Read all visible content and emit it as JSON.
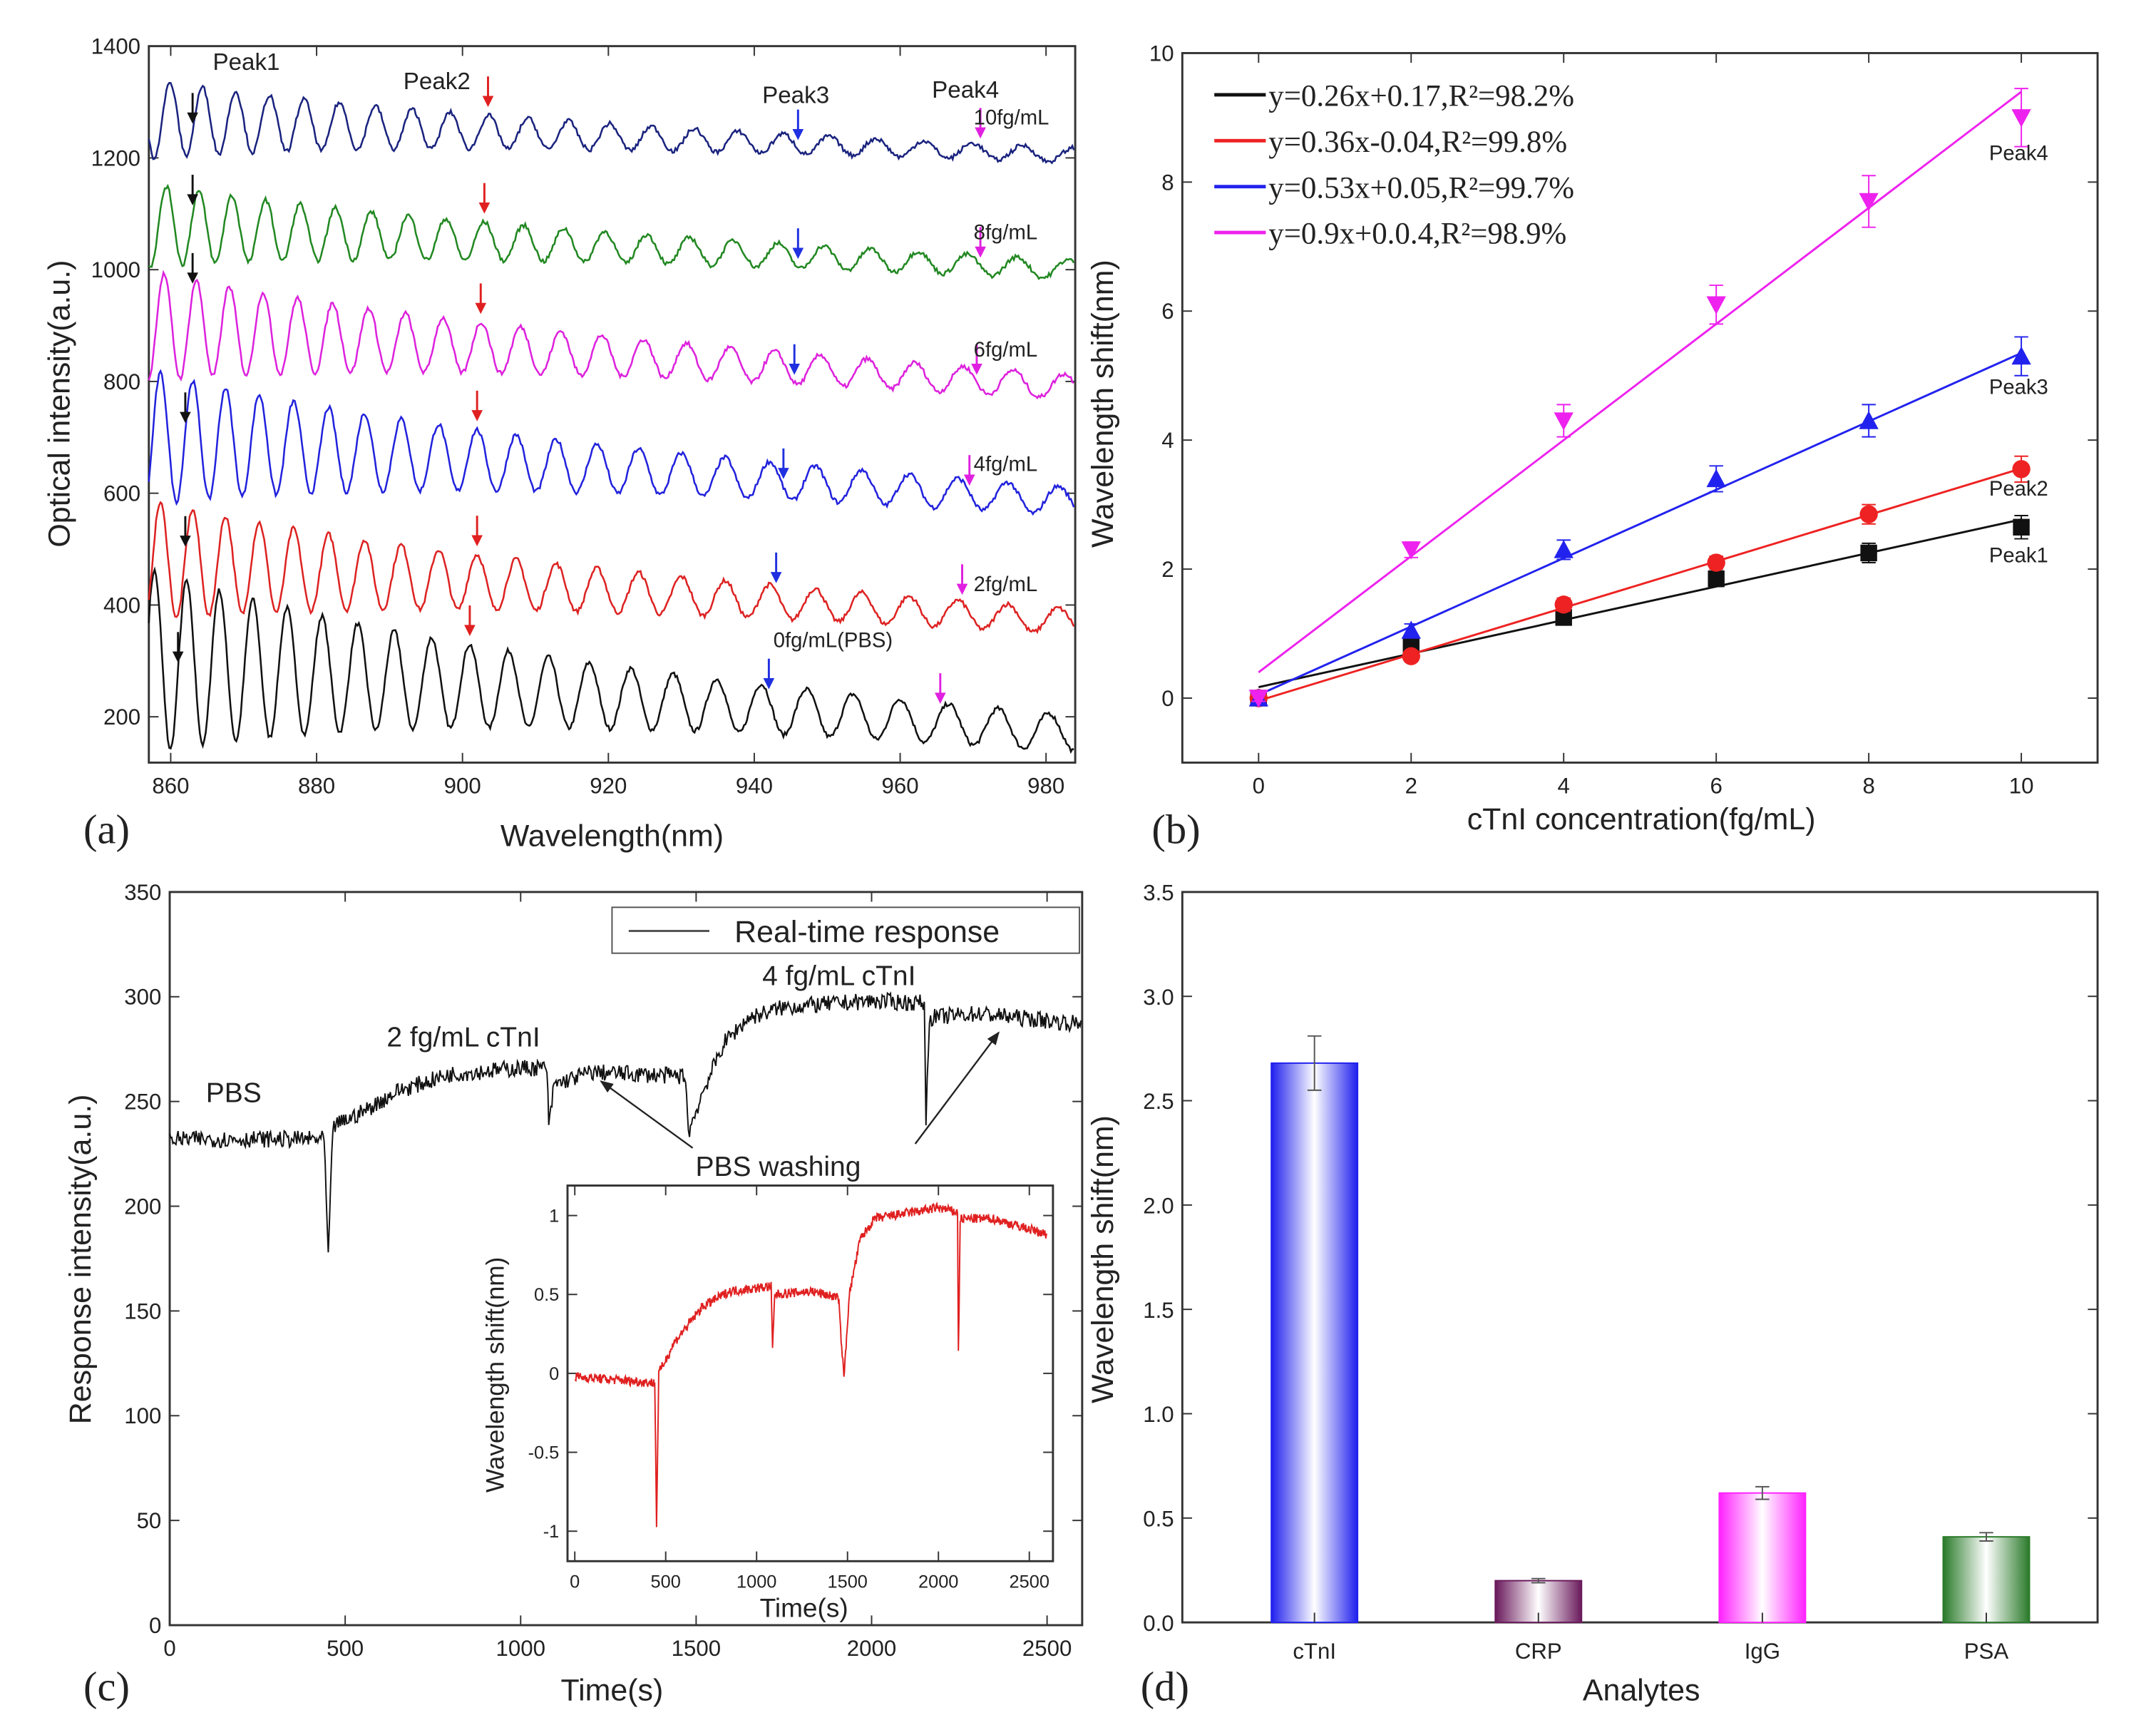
{
  "chart_data": [
    {
      "panel": "(a)",
      "type": "line",
      "xlabel": "Wavelength(nm)",
      "ylabel": "Optical intensity(a.u.)",
      "xlim": [
        857,
        984
      ],
      "ylim": [
        118,
        1400
      ],
      "xticks": [
        860,
        880,
        900,
        920,
        940,
        960,
        980
      ],
      "yticks": [
        200,
        400,
        600,
        800,
        1000,
        1200,
        1400
      ],
      "peak_labels": [
        "Peak1",
        "Peak2",
        "Peak3",
        "Peak4"
      ],
      "peak_colors": [
        "#111111",
        "#e02020",
        "#2030e0",
        "#e020e0"
      ],
      "series": [
        {
          "name": "0fg/mL(PBS)",
          "color": "#111111",
          "baseline_start": 300,
          "baseline_end": 170,
          "amp_start": 140,
          "amp_end": 25,
          "peaks_nm": [
            861,
            901,
            942,
            965.5
          ]
        },
        {
          "name": "2fg/mL",
          "color": "#dd2222",
          "baseline_start": 480,
          "baseline_end": 370,
          "amp_start": 90,
          "amp_end": 18,
          "peaks_nm": [
            862,
            902,
            943,
            968.5
          ]
        },
        {
          "name": "4fg/mL",
          "color": "#2222dd",
          "baseline_start": 700,
          "baseline_end": 585,
          "amp_start": 100,
          "amp_end": 20,
          "peaks_nm": [
            862,
            902,
            944,
            969.5
          ]
        },
        {
          "name": "6fg/mL",
          "color": "#dd22dd",
          "baseline_start": 900,
          "baseline_end": 790,
          "amp_start": 80,
          "amp_end": 18,
          "peaks_nm": [
            863,
            902.5,
            945.5,
            970.5
          ]
        },
        {
          "name": "8fg/mL",
          "color": "#228822",
          "baseline_start": 1080,
          "baseline_end": 1000,
          "amp_start": 60,
          "amp_end": 14,
          "peaks_nm": [
            863,
            903,
            946,
            971
          ]
        },
        {
          "name": "10fg/mL",
          "color": "#1a237e",
          "baseline_start": 1270,
          "baseline_end": 1205,
          "amp_start": 60,
          "amp_end": 10,
          "peaks_nm": [
            863,
            903.5,
            946,
            971
          ]
        }
      ]
    },
    {
      "panel": "(b)",
      "type": "scatter",
      "xlabel": "cTnI concentration(fg/mL)",
      "ylabel": "Wavelength shift(nm)",
      "xlim": [
        -1,
        11
      ],
      "ylim": [
        -1,
        10
      ],
      "xticks": [
        0,
        2,
        4,
        6,
        8,
        10
      ],
      "yticks": [
        0,
        2,
        4,
        6,
        8,
        10
      ],
      "x": [
        0,
        2,
        4,
        6,
        8,
        10
      ],
      "series": [
        {
          "name": "Peak1",
          "color": "#111111",
          "marker": "square",
          "values": [
            0,
            0.8,
            1.25,
            1.85,
            2.25,
            2.65
          ],
          "errors": [
            0.05,
            0.15,
            0.1,
            0.12,
            0.15,
            0.18
          ],
          "fit": {
            "slope": 0.26,
            "intercept": 0.17
          },
          "legend": "y=0.26x+0.17,R²=98.2%"
        },
        {
          "name": "Peak2",
          "color": "#ee2222",
          "marker": "circle",
          "values": [
            0,
            0.65,
            1.45,
            2.1,
            2.85,
            3.55
          ],
          "errors": [
            0.05,
            0.08,
            0.1,
            0.1,
            0.15,
            0.2
          ],
          "fit": {
            "slope": 0.36,
            "intercept": -0.04
          },
          "legend": "y=0.36x-0.04,R²=99.8%"
        },
        {
          "name": "Peak3",
          "color": "#2222ee",
          "marker": "triangle-up",
          "values": [
            0,
            1.05,
            2.3,
            3.4,
            4.3,
            5.3
          ],
          "errors": [
            0.05,
            0.1,
            0.15,
            0.2,
            0.25,
            0.3
          ],
          "fit": {
            "slope": 0.53,
            "intercept": 0.05
          },
          "legend": "y=0.53x+0.05,R²=99.7%"
        },
        {
          "name": "Peak4",
          "color": "#ee22ee",
          "marker": "triangle-down",
          "values": [
            0,
            2.3,
            4.3,
            6.1,
            7.7,
            9.0
          ],
          "errors": [
            0.05,
            0.12,
            0.25,
            0.3,
            0.4,
            0.45
          ],
          "fit": {
            "slope": 0.9,
            "intercept": 0.4
          },
          "legend": "y=0.9x+0.0.4,R²=98.9%"
        }
      ]
    },
    {
      "panel": "(c)",
      "type": "line",
      "xlabel": "Time(s)",
      "ylabel": "Response intensity(a.u.)",
      "xlim": [
        0,
        2600
      ],
      "ylim": [
        0,
        350
      ],
      "xticks": [
        0,
        500,
        1000,
        1500,
        2000,
        2500
      ],
      "yticks": [
        0,
        50,
        100,
        150,
        200,
        250,
        300,
        350
      ],
      "legend": "Real-time response",
      "annotations": [
        "PBS",
        "2 fg/mL cTnI",
        "4 fg/mL cTnI",
        "PBS washing"
      ],
      "series": [
        {
          "name": "Real-time response",
          "color": "#111111",
          "points": [
            [
              0,
              232
            ],
            [
              440,
              232
            ],
            [
              452,
              175
            ],
            [
              465,
              238
            ],
            [
              550,
              245
            ],
            [
              650,
              255
            ],
            [
              800,
              263
            ],
            [
              1000,
              266
            ],
            [
              1075,
              266
            ],
            [
              1080,
              237
            ],
            [
              1095,
              258
            ],
            [
              1200,
              264
            ],
            [
              1470,
              262
            ],
            [
              1478,
              235
            ],
            [
              1520,
              255
            ],
            [
              1580,
              278
            ],
            [
              1650,
              290
            ],
            [
              1750,
              295
            ],
            [
              2000,
              298
            ],
            [
              2150,
              297
            ],
            [
              2155,
              242
            ],
            [
              2165,
              290
            ],
            [
              2300,
              292
            ],
            [
              2600,
              287
            ]
          ]
        }
      ],
      "inset": {
        "type": "line",
        "xlabel": "Time(s)",
        "ylabel": "Wavelength shift(nm)",
        "xlim": [
          -40,
          2630
        ],
        "ylim": [
          -1.19,
          1.19
        ],
        "xticks": [
          0,
          500,
          1000,
          1500,
          2000,
          2500
        ],
        "yticks": [
          -1,
          -0.5,
          0,
          0.5,
          1
        ],
        "series": [
          {
            "name": "Wavelength shift",
            "color": "#e02020",
            "points": [
              [
                0,
                -0.02
              ],
              [
                440,
                -0.06
              ],
              [
                450,
                -0.97
              ],
              [
                462,
                0.0
              ],
              [
                550,
                0.2
              ],
              [
                700,
                0.42
              ],
              [
                850,
                0.52
              ],
              [
                1080,
                0.55
              ],
              [
                1088,
                0.15
              ],
              [
                1100,
                0.5
              ],
              [
                1300,
                0.52
              ],
              [
                1450,
                0.48
              ],
              [
                1480,
                -0.03
              ],
              [
                1510,
                0.5
              ],
              [
                1570,
                0.85
              ],
              [
                1650,
                0.98
              ],
              [
                2000,
                1.05
              ],
              [
                2105,
                1.02
              ],
              [
                2110,
                0.12
              ],
              [
                2120,
                0.98
              ],
              [
                2300,
                0.98
              ],
              [
                2600,
                0.88
              ]
            ]
          }
        ]
      }
    },
    {
      "panel": "(d)",
      "type": "bar",
      "xlabel": "Analytes",
      "ylabel": "Wavelength shift(nm)",
      "ylim": [
        0,
        3.5
      ],
      "yticks": [
        0.0,
        0.5,
        1.0,
        1.5,
        2.0,
        2.5,
        3.0,
        3.5
      ],
      "categories": [
        "cTnI",
        "CRP",
        "IgG",
        "PSA"
      ],
      "values": [
        2.68,
        0.2,
        0.62,
        0.41
      ],
      "errors": [
        0.13,
        0.01,
        0.03,
        0.02
      ],
      "colors": [
        "#2020ee",
        "#6a1a5c",
        "#ff22ff",
        "#2a7a2a"
      ]
    }
  ]
}
